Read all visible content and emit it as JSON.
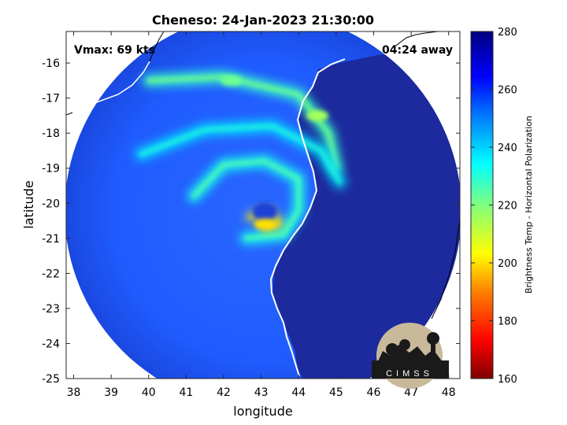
{
  "title": "Cheneso: 24-Jan-2023 21:30:00",
  "vmax_label": "Vmax: 69 kts",
  "time_away": "04:24 away",
  "logo_text": "CIMSS",
  "colors": {
    "land": "#1a1f8f",
    "ocean_background": "#1f5cff",
    "ring_color": "#1f5cff",
    "coast": "#ffffff"
  },
  "chart_data": {
    "type": "heatmap",
    "title": "Cheneso: 24-Jan-2023 21:30:00",
    "xlabel": "longitude",
    "ylabel": "latitude",
    "xlim": [
      37.8,
      48.3
    ],
    "ylim": [
      -25,
      -15.1
    ],
    "xticks": [
      38,
      39,
      40,
      41,
      42,
      43,
      44,
      45,
      46,
      47,
      48
    ],
    "yticks": [
      -16,
      -17,
      -18,
      -19,
      -20,
      -21,
      -22,
      -23,
      -24,
      -25
    ],
    "colorbar": {
      "label": "Brightness Temp - Horizontal Polarization",
      "range": [
        160,
        280
      ],
      "ticks": [
        280,
        260,
        240,
        220,
        200,
        180,
        160
      ],
      "colormap": "parula/jet"
    },
    "storm_center": {
      "lon": 43.1,
      "lat": -20.6
    },
    "bands": [
      {
        "name": "outer",
        "points": [
          [
            40.0,
            -16.5
          ],
          [
            42.0,
            -16.4
          ],
          [
            44.0,
            -16.9
          ],
          [
            44.8,
            -18.0
          ],
          [
            45.0,
            -19.0
          ]
        ],
        "temp": 228
      },
      {
        "name": "middle",
        "points": [
          [
            39.8,
            -18.6
          ],
          [
            41.5,
            -17.9
          ],
          [
            43.3,
            -17.8
          ],
          [
            44.6,
            -18.5
          ],
          [
            45.1,
            -19.4
          ]
        ],
        "temp": 238
      },
      {
        "name": "inner",
        "points": [
          [
            41.2,
            -19.8
          ],
          [
            42.0,
            -18.9
          ],
          [
            43.1,
            -18.8
          ],
          [
            44.0,
            -19.3
          ],
          [
            44.0,
            -20.2
          ],
          [
            43.6,
            -20.9
          ],
          [
            42.6,
            -21.0
          ]
        ],
        "temp": 232
      },
      {
        "name": "eyewall",
        "points": [
          [
            42.7,
            -20.4
          ],
          [
            43.2,
            -20.2
          ],
          [
            43.5,
            -20.6
          ],
          [
            43.1,
            -20.7
          ]
        ],
        "temp": 205
      }
    ],
    "hotspots": [
      {
        "lon": 43.1,
        "lat": -20.6,
        "temp": 200
      },
      {
        "lon": 44.5,
        "lat": -17.5,
        "temp": 215
      },
      {
        "lon": 42.2,
        "lat": -16.5,
        "temp": 222
      }
    ]
  }
}
